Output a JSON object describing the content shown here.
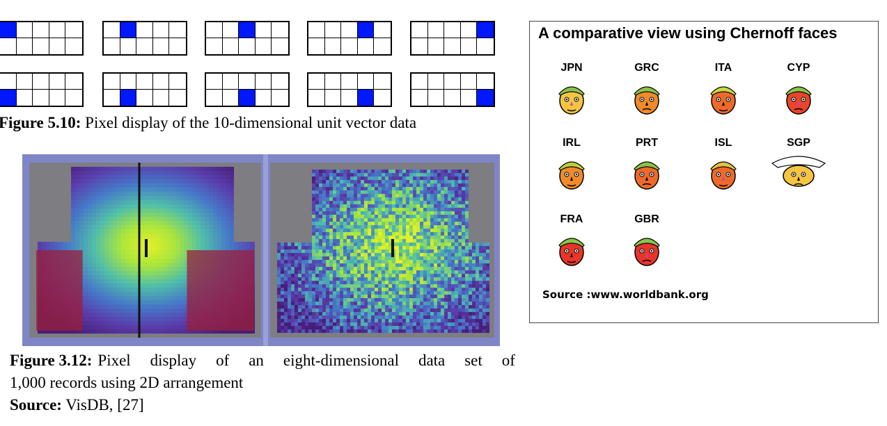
{
  "figure_5_10": {
    "caption_label": "Figure 5.10:",
    "caption_text": " Pixel display of the 10-dimensional unit vector data",
    "unit_vectors": [
      {
        "row": 0,
        "index": 0
      },
      {
        "row": 0,
        "index": 1
      },
      {
        "row": 0,
        "index": 2
      },
      {
        "row": 0,
        "index": 3
      },
      {
        "row": 0,
        "index": 4
      },
      {
        "row": 1,
        "index": 0
      },
      {
        "row": 1,
        "index": 1
      },
      {
        "row": 1,
        "index": 2
      },
      {
        "row": 1,
        "index": 3
      },
      {
        "row": 1,
        "index": 4
      }
    ],
    "highlight_color": "#0018ff"
  },
  "figure_3_12": {
    "caption_label": "Figure 3.12:",
    "caption_line1": " Pixel display of an eight-dimensional data set of",
    "caption_line2": "1,000 records using 2D arrangement",
    "source_label": "Source:",
    "source_text": " VisDB, [27]"
  },
  "chernoff": {
    "title": "A comparative view using Chernoff faces",
    "faces": [
      {
        "code": "JPN",
        "face_color": "#f5c542",
        "hair_color": "#8bc34a"
      },
      {
        "code": "GRC",
        "face_color": "#f08a2a",
        "hair_color": "#8bc34a"
      },
      {
        "code": "ITA",
        "face_color": "#ee6a2a",
        "hair_color": "#c8d840"
      },
      {
        "code": "CYP",
        "face_color": "#e8452a",
        "hair_color": "#8bc34a"
      },
      {
        "code": "IRL",
        "face_color": "#f08a2a",
        "hair_color": "#b8d040"
      },
      {
        "code": "PRT",
        "face_color": "#ee6a2a",
        "hair_color": "#8bc34a"
      },
      {
        "code": "ISL",
        "face_color": "#ee6a2a",
        "hair_color": "#e8c040"
      },
      {
        "code": "SGP",
        "face_color": "#f5c542",
        "hair_color": "#ffffff"
      },
      {
        "code": "FRA",
        "face_color": "#e8352a",
        "hair_color": "#8bc34a"
      },
      {
        "code": "GBR",
        "face_color": "#e8352a",
        "hair_color": "#8bc34a"
      }
    ],
    "source": "Source :www.worldbank.org"
  }
}
